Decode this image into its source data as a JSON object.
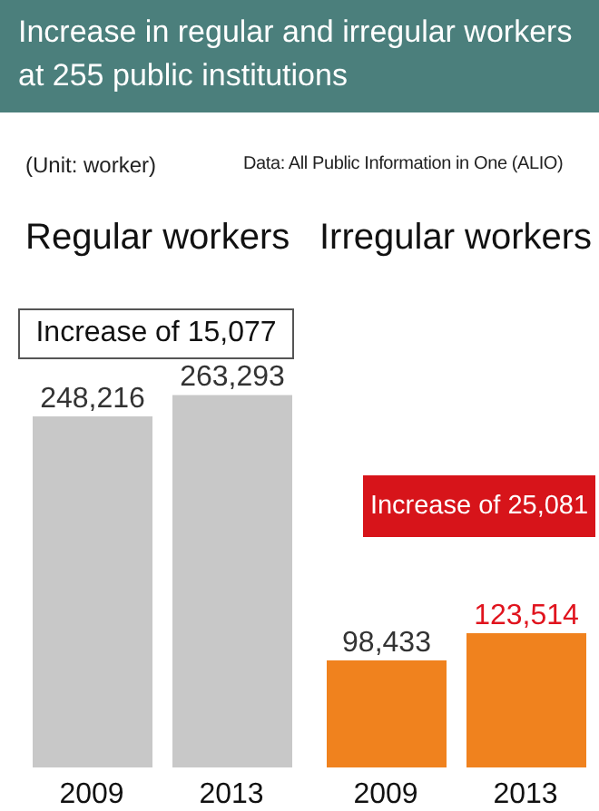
{
  "chart_data": [
    {
      "type": "bar",
      "title": "Increase in regular and irregular workers at 255 public institutions",
      "subtitle": "(Unit: worker)",
      "annotations": [
        "Data: All Public Information in One (ALIO)",
        "Increase of 15,077"
      ],
      "categories": [
        "2009",
        "2013"
      ],
      "series": [
        {
          "name": "Regular workers",
          "color": "#c8c8c8",
          "values": [
            248216,
            263293
          ],
          "value_labels": [
            "248,216",
            "263,293"
          ]
        }
      ],
      "tick_labels": "x",
      "grid": false,
      "legend": false
    },
    {
      "type": "bar",
      "annotations": [
        "Increase of 25,081"
      ],
      "categories": [
        "2009",
        "2013"
      ],
      "series": [
        {
          "name": "Irregular workers",
          "color": "#f0821e",
          "values": [
            98433,
            123514
          ],
          "value_labels": [
            "98,433",
            "123,514"
          ]
        }
      ],
      "tick_labels": "x",
      "grid": false,
      "legend": false
    }
  ]
}
